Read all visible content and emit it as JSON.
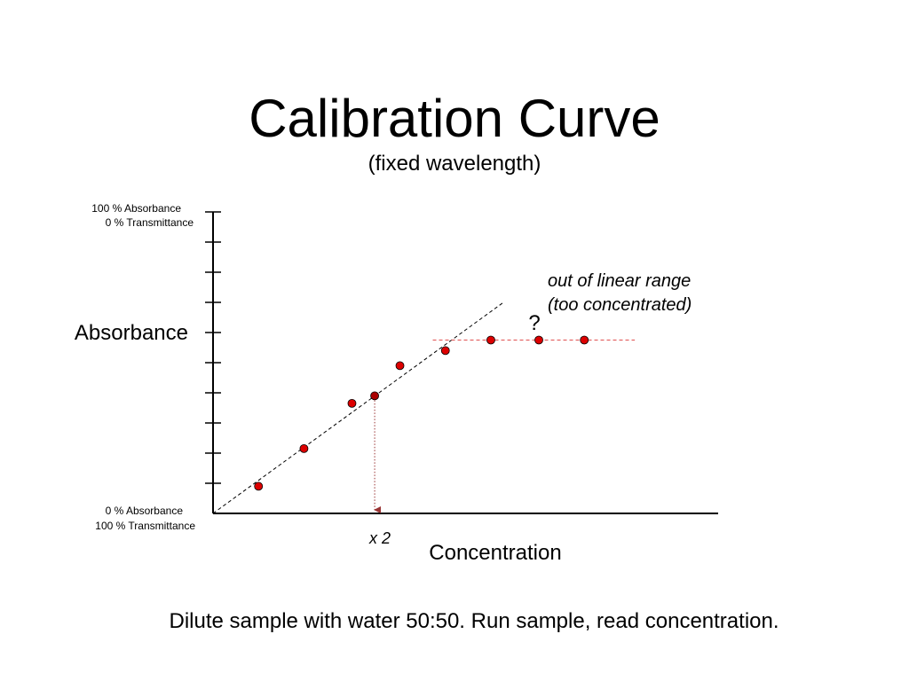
{
  "slide": {
    "title": "Calibration Curve",
    "subtitle": "(fixed wavelength)",
    "footer": "Dilute sample with water 50:50.  Run sample, read concentration."
  },
  "colors": {
    "point": "#dd0000",
    "point_highlight": "#aa0000",
    "plateau_line": "#e05050",
    "arrow": "#993333",
    "axis": "#000000"
  },
  "chart_data": {
    "type": "scatter",
    "title": "Calibration Curve",
    "subtitle": "(fixed wavelength)",
    "xlabel": "Concentration",
    "ylabel": "Absorbance",
    "xlim": [
      0,
      10
    ],
    "ylim": [
      0,
      10
    ],
    "x_ticks": false,
    "y_ticks": 10,
    "grid": false,
    "axis_labels": {
      "y_top_line1": "100 % Absorbance",
      "y_top_line2": "0 % Transmittance",
      "y_bottom_line1": "0 % Absorbance",
      "y_bottom_line2": "100 % Transmittance"
    },
    "points": [
      {
        "x": 0.9,
        "y": 0.9
      },
      {
        "x": 1.8,
        "y": 2.15
      },
      {
        "x": 2.75,
        "y": 3.65
      },
      {
        "x": 3.2,
        "y": 3.9,
        "highlight": true
      },
      {
        "x": 3.7,
        "y": 4.9
      },
      {
        "x": 4.6,
        "y": 5.4
      },
      {
        "x": 5.5,
        "y": 5.75
      },
      {
        "x": 6.45,
        "y": 5.75
      },
      {
        "x": 7.35,
        "y": 5.75
      }
    ],
    "trend_line": {
      "from": [
        0,
        0
      ],
      "to": [
        5.75,
        7.0
      ],
      "style": "dashed"
    },
    "plateau_line": {
      "x_from": 4.35,
      "x_to": 8.35,
      "y": 5.75,
      "style": "dashed"
    },
    "read_arrow": {
      "x": 3.2,
      "from_y": 3.9,
      "to_y": 0,
      "label": "x 2"
    },
    "annotations": {
      "question": "?",
      "out_of_range_line1": "out of linear range",
      "out_of_range_line2": "(too concentrated)"
    }
  }
}
